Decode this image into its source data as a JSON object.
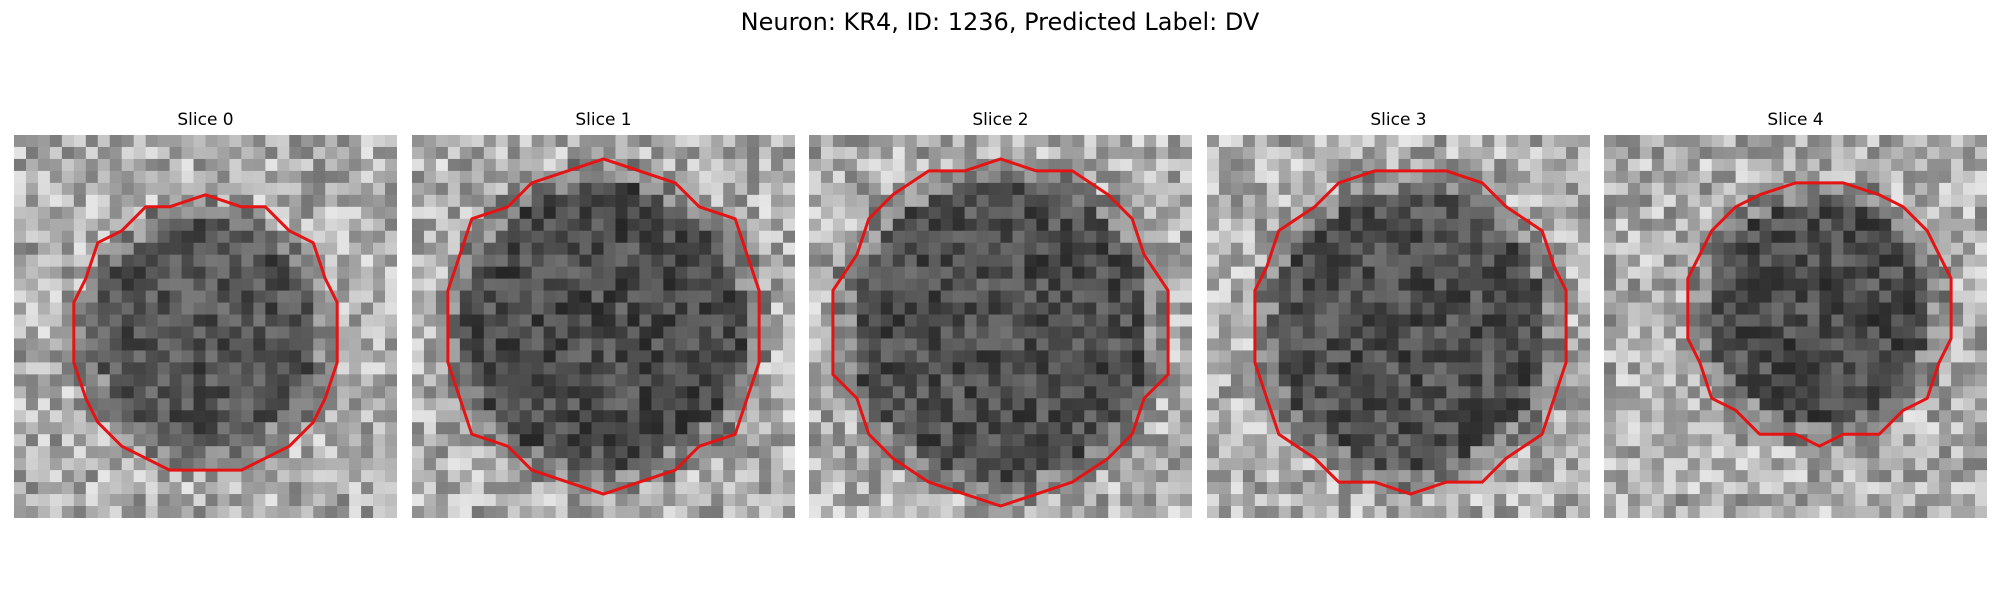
{
  "figure": {
    "title": "Neuron: KR4, ID: 1236, Predicted Label: DV"
  },
  "panels": [
    {
      "title": "Slice 0",
      "seed": 11,
      "center": [
        0.5,
        0.52
      ],
      "radius": 0.36,
      "dark_radius": 0.29,
      "cell_darkness": 0.35
    },
    {
      "title": "Slice 1",
      "seed": 23,
      "center": [
        0.5,
        0.5
      ],
      "radius": 0.42,
      "dark_radius": 0.37,
      "cell_darkness": 0.55
    },
    {
      "title": "Slice 2",
      "seed": 37,
      "center": [
        0.5,
        0.51
      ],
      "radius": 0.44,
      "dark_radius": 0.39,
      "cell_darkness": 0.5
    },
    {
      "title": "Slice 3",
      "seed": 41,
      "center": [
        0.53,
        0.51
      ],
      "radius": 0.42,
      "dark_radius": 0.36,
      "cell_darkness": 0.48
    },
    {
      "title": "Slice 4",
      "seed": 53,
      "center": [
        0.56,
        0.46
      ],
      "radius": 0.34,
      "dark_radius": 0.29,
      "cell_darkness": 0.55
    }
  ],
  "style": {
    "contour_color": "#e41414"
  }
}
